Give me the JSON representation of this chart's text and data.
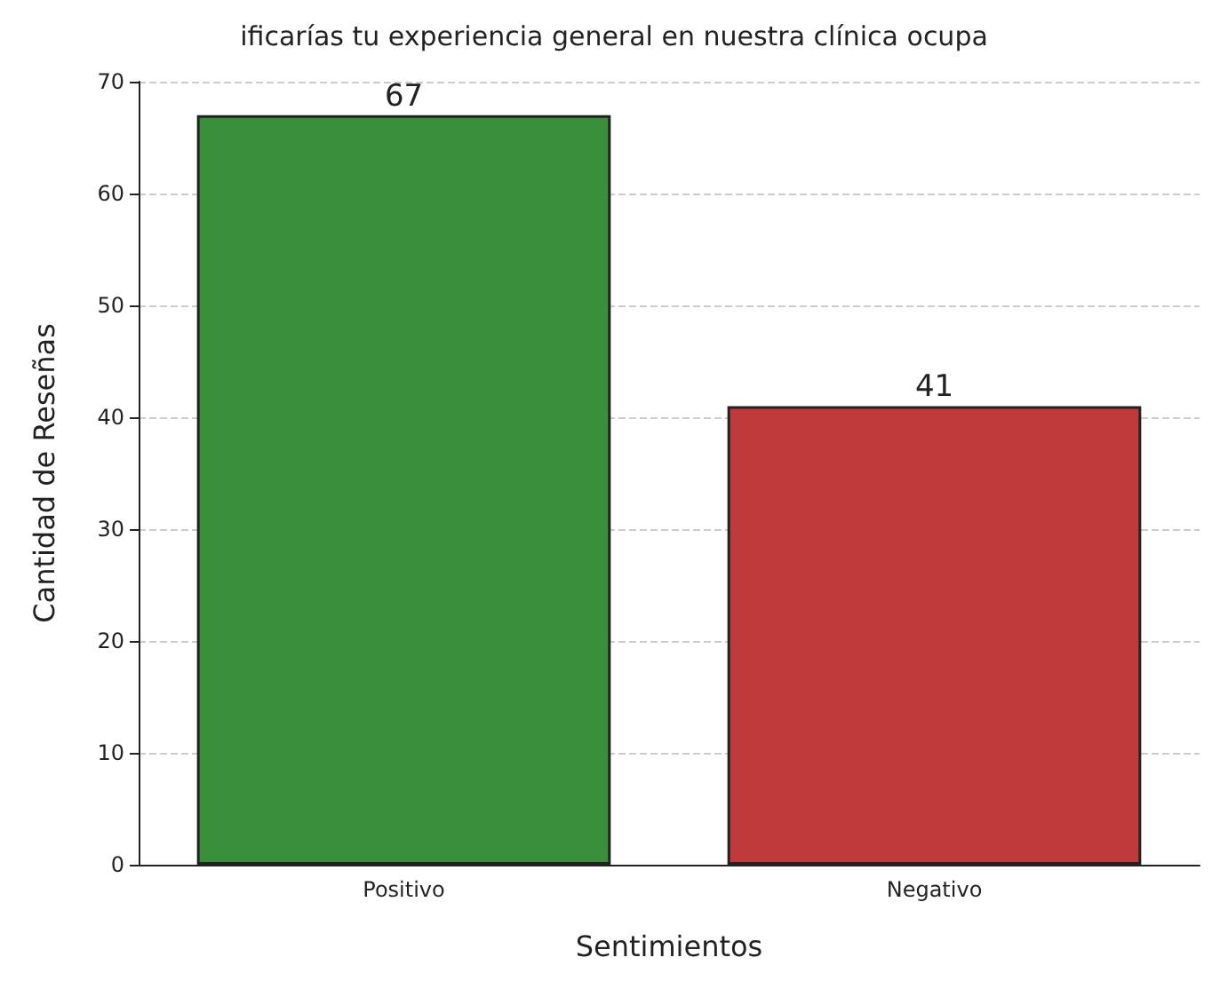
{
  "chart_data": {
    "type": "bar",
    "title": "ificarías tu experiencia general en nuestra clínica ocupa",
    "xlabel": "Sentimientos",
    "ylabel": "Cantidad de Reseñas",
    "categories": [
      "Positivo",
      "Negativo"
    ],
    "values": [
      67,
      41
    ],
    "colors": [
      "#3a8f3a",
      "#c0393b"
    ],
    "ylim": [
      0,
      70
    ],
    "yticks": [
      0,
      10,
      20,
      30,
      40,
      50,
      60,
      70
    ],
    "grid": "y",
    "data_labels": true
  }
}
